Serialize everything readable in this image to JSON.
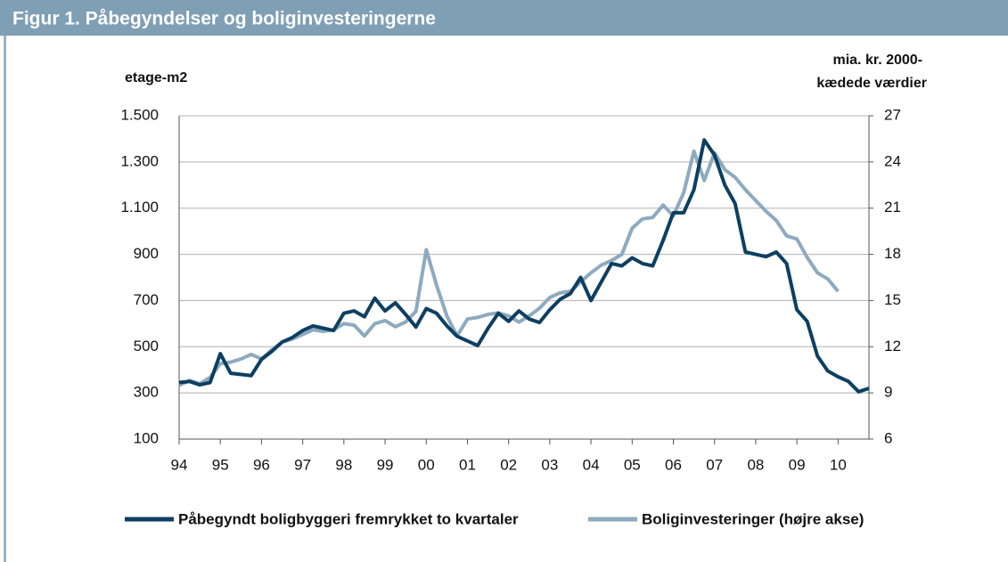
{
  "chart_data": {
    "type": "line",
    "title": "Figur 1. Påbegyndelser og boliginvesteringerne",
    "ylabel": "etage-m2",
    "y2label": [
      "mia. kr. 2000-",
      "kædede værdier"
    ],
    "categories": [
      "94",
      null,
      null,
      null,
      "95",
      null,
      null,
      null,
      "96",
      null,
      null,
      null,
      "97",
      null,
      null,
      null,
      "98",
      null,
      null,
      null,
      "99",
      null,
      null,
      null,
      "00",
      null,
      null,
      null,
      "01",
      null,
      null,
      null,
      "02",
      null,
      null,
      null,
      "03",
      null,
      null,
      null,
      "04",
      null,
      null,
      null,
      "05",
      null,
      null,
      null,
      "06",
      null,
      null,
      null,
      "07",
      null,
      null,
      null,
      "08",
      null,
      null,
      null,
      "09",
      null,
      null,
      null,
      "10",
      null,
      null,
      null
    ],
    "series": [
      {
        "name": "Påbegyndt boligbyggeri fremrykket to kvartaler",
        "color": "#0d3f61",
        "axis": "y",
        "values": [
          345,
          350,
          335,
          345,
          470,
          385,
          380,
          375,
          445,
          480,
          520,
          540,
          570,
          590,
          580,
          570,
          645,
          655,
          630,
          710,
          655,
          690,
          640,
          585,
          665,
          645,
          590,
          545,
          525,
          505,
          580,
          645,
          610,
          655,
          620,
          605,
          660,
          705,
          730,
          800,
          700,
          780,
          860,
          850,
          885,
          860,
          850,
          960,
          1080,
          1080,
          1180,
          1395,
          1330,
          1200,
          1120,
          910,
          900,
          890,
          910,
          860,
          660,
          610,
          460,
          395,
          370,
          350,
          305,
          320
        ]
      },
      {
        "name": "Boliginvesteringer (højre akse)",
        "color": "#8eaabf",
        "axis": "y2",
        "values": [
          9.5,
          9.8,
          9.6,
          10.0,
          10.9,
          11.0,
          11.2,
          11.5,
          11.2,
          11.8,
          12.3,
          12.5,
          12.8,
          13.1,
          13.0,
          13.1,
          13.5,
          13.4,
          12.7,
          13.5,
          13.7,
          13.3,
          13.6,
          14.3,
          18.3,
          16.0,
          14.0,
          12.7,
          13.8,
          13.9,
          14.1,
          14.2,
          14.0,
          13.6,
          14.0,
          14.5,
          15.2,
          15.5,
          15.6,
          16.2,
          16.8,
          17.3,
          17.6,
          18.0,
          19.7,
          20.3,
          20.4,
          21.2,
          20.5,
          22.0,
          24.7,
          22.8,
          24.6,
          23.5,
          23.0,
          22.2,
          21.5,
          20.8,
          20.2,
          19.2,
          19.0,
          17.8,
          16.8,
          16.4,
          15.6,
          null,
          null,
          null
        ]
      }
    ],
    "ylim": [
      100,
      1500
    ],
    "yticks": [
      100,
      300,
      500,
      700,
      900,
      {
        "value": 1100,
        "label": "1.100"
      },
      {
        "value": 1300,
        "label": "1.300"
      },
      {
        "value": 1500,
        "label": "1.500"
      }
    ],
    "y2lim": [
      6,
      27
    ],
    "y2ticks": [
      6,
      9,
      12,
      15,
      18,
      21,
      24,
      27
    ],
    "grid": true,
    "legend": "bottom"
  }
}
